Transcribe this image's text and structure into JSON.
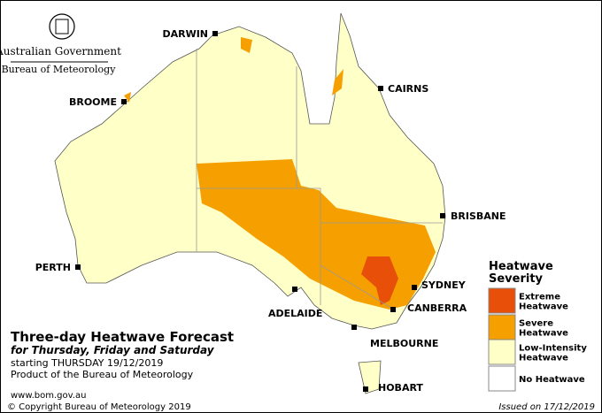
{
  "header": {
    "government": "Australian Government",
    "bureau": "Bureau of Meteorology"
  },
  "cities": [
    "DARWIN",
    "CAIRNS",
    "BROOME",
    "BRISBANE",
    "PERTH",
    "SYDNEY",
    "ADELAIDE",
    "CANBERRA",
    "MELBOURNE",
    "HOBART"
  ],
  "title": {
    "main": "Three-day Heatwave Forecast",
    "subtitle": "for Thursday, Friday and Saturday",
    "starting": "starting THURSDAY 19/12/2019",
    "product": "Product of the Bureau of Meteorology",
    "website": "www.bom.gov.au"
  },
  "legend": {
    "title": [
      "Heatwave",
      "Severity"
    ],
    "items": [
      {
        "lines": [
          "Extreme",
          "Heatwave"
        ],
        "color": "#e8500a"
      },
      {
        "lines": [
          "Severe",
          "Heatwave"
        ],
        "color": "#f5a000"
      },
      {
        "lines": [
          "Low-Intensity",
          "Heatwave"
        ],
        "color": "#ffffc8"
      },
      {
        "lines": [
          "No Heatwave"
        ],
        "color": "#ffffff"
      }
    ]
  },
  "footer": {
    "copyright": "© Copyright Bureau of Meteorology 2019",
    "issued": "Issued on 17/12/2019"
  }
}
